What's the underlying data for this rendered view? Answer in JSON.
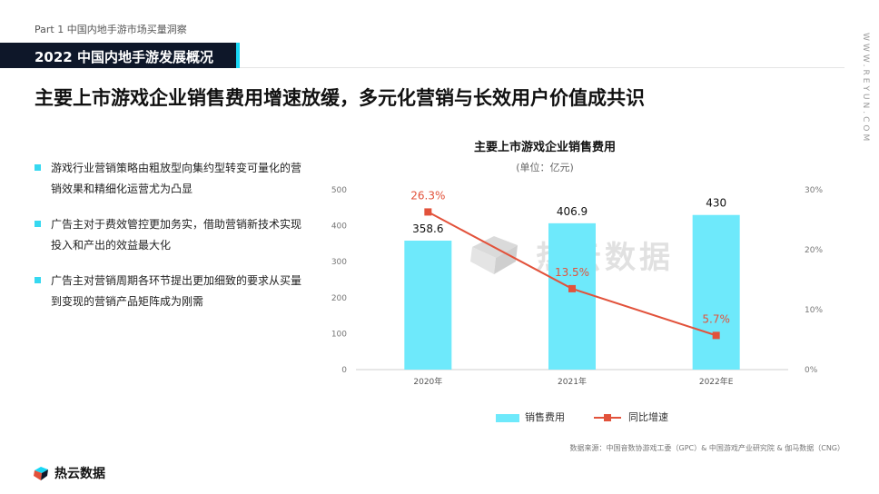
{
  "header": {
    "breadcrumb": "Part 1  中国内地手游市场买量洞察",
    "section_title": "2022 中国内地手游发展概况",
    "side_url": "WWW.REYUN.COM",
    "headline": "主要上市游戏企业销售费用增速放缓，多元化营销与长效用户价值成共识"
  },
  "bullets": [
    "游戏行业营销策略由粗放型向集约型转变可量化的营销效果和精细化运营尤为凸显",
    "广告主对于费效管控更加务实，借助营销新技术实现投入和产出的效益最大化",
    "广告主对营销周期各环节提出更加细致的要求从买量到变现的营销产品矩阵成为刚需"
  ],
  "watermark_text": "热云数据",
  "legend": {
    "bar": "销售费用",
    "line": "同比增速"
  },
  "source": "数据来源：中国音数协游戏工委（GPC）& 中国游戏产业研究院 & 伽马数据（CNG）",
  "logo_text": "热云数据",
  "colors": {
    "bar": "#6ee9fb",
    "line": "#e2523b",
    "accent": "#18d7f5",
    "dark": "#0e1729"
  },
  "chart_data": {
    "type": "bar",
    "title": "主要上市游戏企业销售费用",
    "subtitle": "(单位：亿元)",
    "categories": [
      "2020年",
      "2021年",
      "2022年E"
    ],
    "series": [
      {
        "name": "销售费用",
        "type": "bar",
        "axis": "left",
        "values": [
          358.6,
          406.9,
          430
        ],
        "labels": [
          "358.6",
          "406.9",
          "430"
        ]
      },
      {
        "name": "同比增速",
        "type": "line",
        "axis": "right",
        "values": [
          26.3,
          13.5,
          5.7
        ],
        "labels": [
          "26.3%",
          "13.5%",
          "5.7%"
        ]
      }
    ],
    "ylim": [
      0,
      500
    ],
    "yticks": [
      "0",
      "100",
      "200",
      "300",
      "400",
      "500"
    ],
    "y2lim": [
      0,
      30
    ],
    "y2ticks": [
      "0%",
      "10%",
      "20%",
      "30%"
    ],
    "grid": false,
    "legend": "bottom"
  }
}
